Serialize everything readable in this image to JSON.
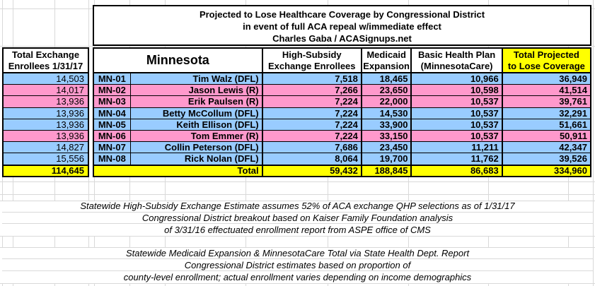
{
  "title": {
    "lines": [
      "Projected to Lose Healthcare Coverage by Congressional District",
      "in event of full ACA repeal w/immediate effect",
      "Charles Gaba / ACASignups.net"
    ]
  },
  "left_table": {
    "header_lines": [
      "Total Exchange",
      "Enrollees 1/31/17"
    ],
    "total": "114,645"
  },
  "main_table": {
    "state_header": "Minnesota",
    "col_headers": [
      [
        "High-Subsidy",
        "Exchange Enrollees"
      ],
      [
        "Medicaid",
        "Expansion"
      ],
      [
        "Basic Health Plan",
        "(MinnesotaCare)"
      ],
      [
        "Total Projected",
        "to Lose Coverage"
      ]
    ],
    "rows": [
      {
        "district": "MN-01",
        "rep": "Tim Walz (DFL)",
        "party": "DFL",
        "exchange_1_31_17": "14,503",
        "values": [
          "7,518",
          "18,465",
          "10,966",
          "36,949"
        ]
      },
      {
        "district": "MN-02",
        "rep": "Jason Lewis (R)",
        "party": "R",
        "exchange_1_31_17": "14,017",
        "values": [
          "7,266",
          "23,650",
          "10,598",
          "41,514"
        ]
      },
      {
        "district": "MN-03",
        "rep": "Erik Paulsen (R)",
        "party": "R",
        "exchange_1_31_17": "13,936",
        "values": [
          "7,224",
          "22,000",
          "10,537",
          "39,761"
        ]
      },
      {
        "district": "MN-04",
        "rep": "Betty McCollum (DFL)",
        "party": "DFL",
        "exchange_1_31_17": "13,936",
        "values": [
          "7,224",
          "14,530",
          "10,537",
          "32,291"
        ]
      },
      {
        "district": "MN-05",
        "rep": "Keith Ellison (DFL)",
        "party": "DFL",
        "exchange_1_31_17": "13,936",
        "values": [
          "7,224",
          "33,900",
          "10,537",
          "51,661"
        ]
      },
      {
        "district": "MN-06",
        "rep": "Tom Emmer (R)",
        "party": "R",
        "exchange_1_31_17": "13,936",
        "values": [
          "7,224",
          "33,150",
          "10,537",
          "50,911"
        ]
      },
      {
        "district": "MN-07",
        "rep": "Collin Peterson (DFL)",
        "party": "DFL",
        "exchange_1_31_17": "14,827",
        "values": [
          "7,686",
          "23,450",
          "11,211",
          "42,347"
        ]
      },
      {
        "district": "MN-08",
        "rep": "Rick Nolan (DFL)",
        "party": "DFL",
        "exchange_1_31_17": "15,556",
        "values": [
          "8,064",
          "19,700",
          "11,762",
          "39,526"
        ]
      }
    ],
    "total_label": "Total",
    "totals": [
      "59,432",
      "188,845",
      "86,683",
      "334,960"
    ]
  },
  "footnotes": {
    "block1": [
      "Statewide High-Subsidy Exchange Estimate assumes 52% of ACA exchange QHP selections as of 1/31/17",
      "Congressional District breakout based on Kaiser Family Foundation analysis",
      "of 3/31/16 effectuated enrollment report from ASPE office of CMS"
    ],
    "block2": [
      "Statewide Medicaid Expansion & MinnesotaCare Total via State Health Dept. Report",
      "Congressional District estimates based on proportion of",
      "county-level enrollment; actual enrollment varies depending on income demographics"
    ]
  },
  "colors": {
    "dfl_row_blue": "#99CCFF",
    "republican_row_pink": "#FF99CC",
    "total_row_yellow": "#FFFF00",
    "header_highlight_yellow": "#FFFF00",
    "gridline_gray": "#d9d9d9"
  }
}
